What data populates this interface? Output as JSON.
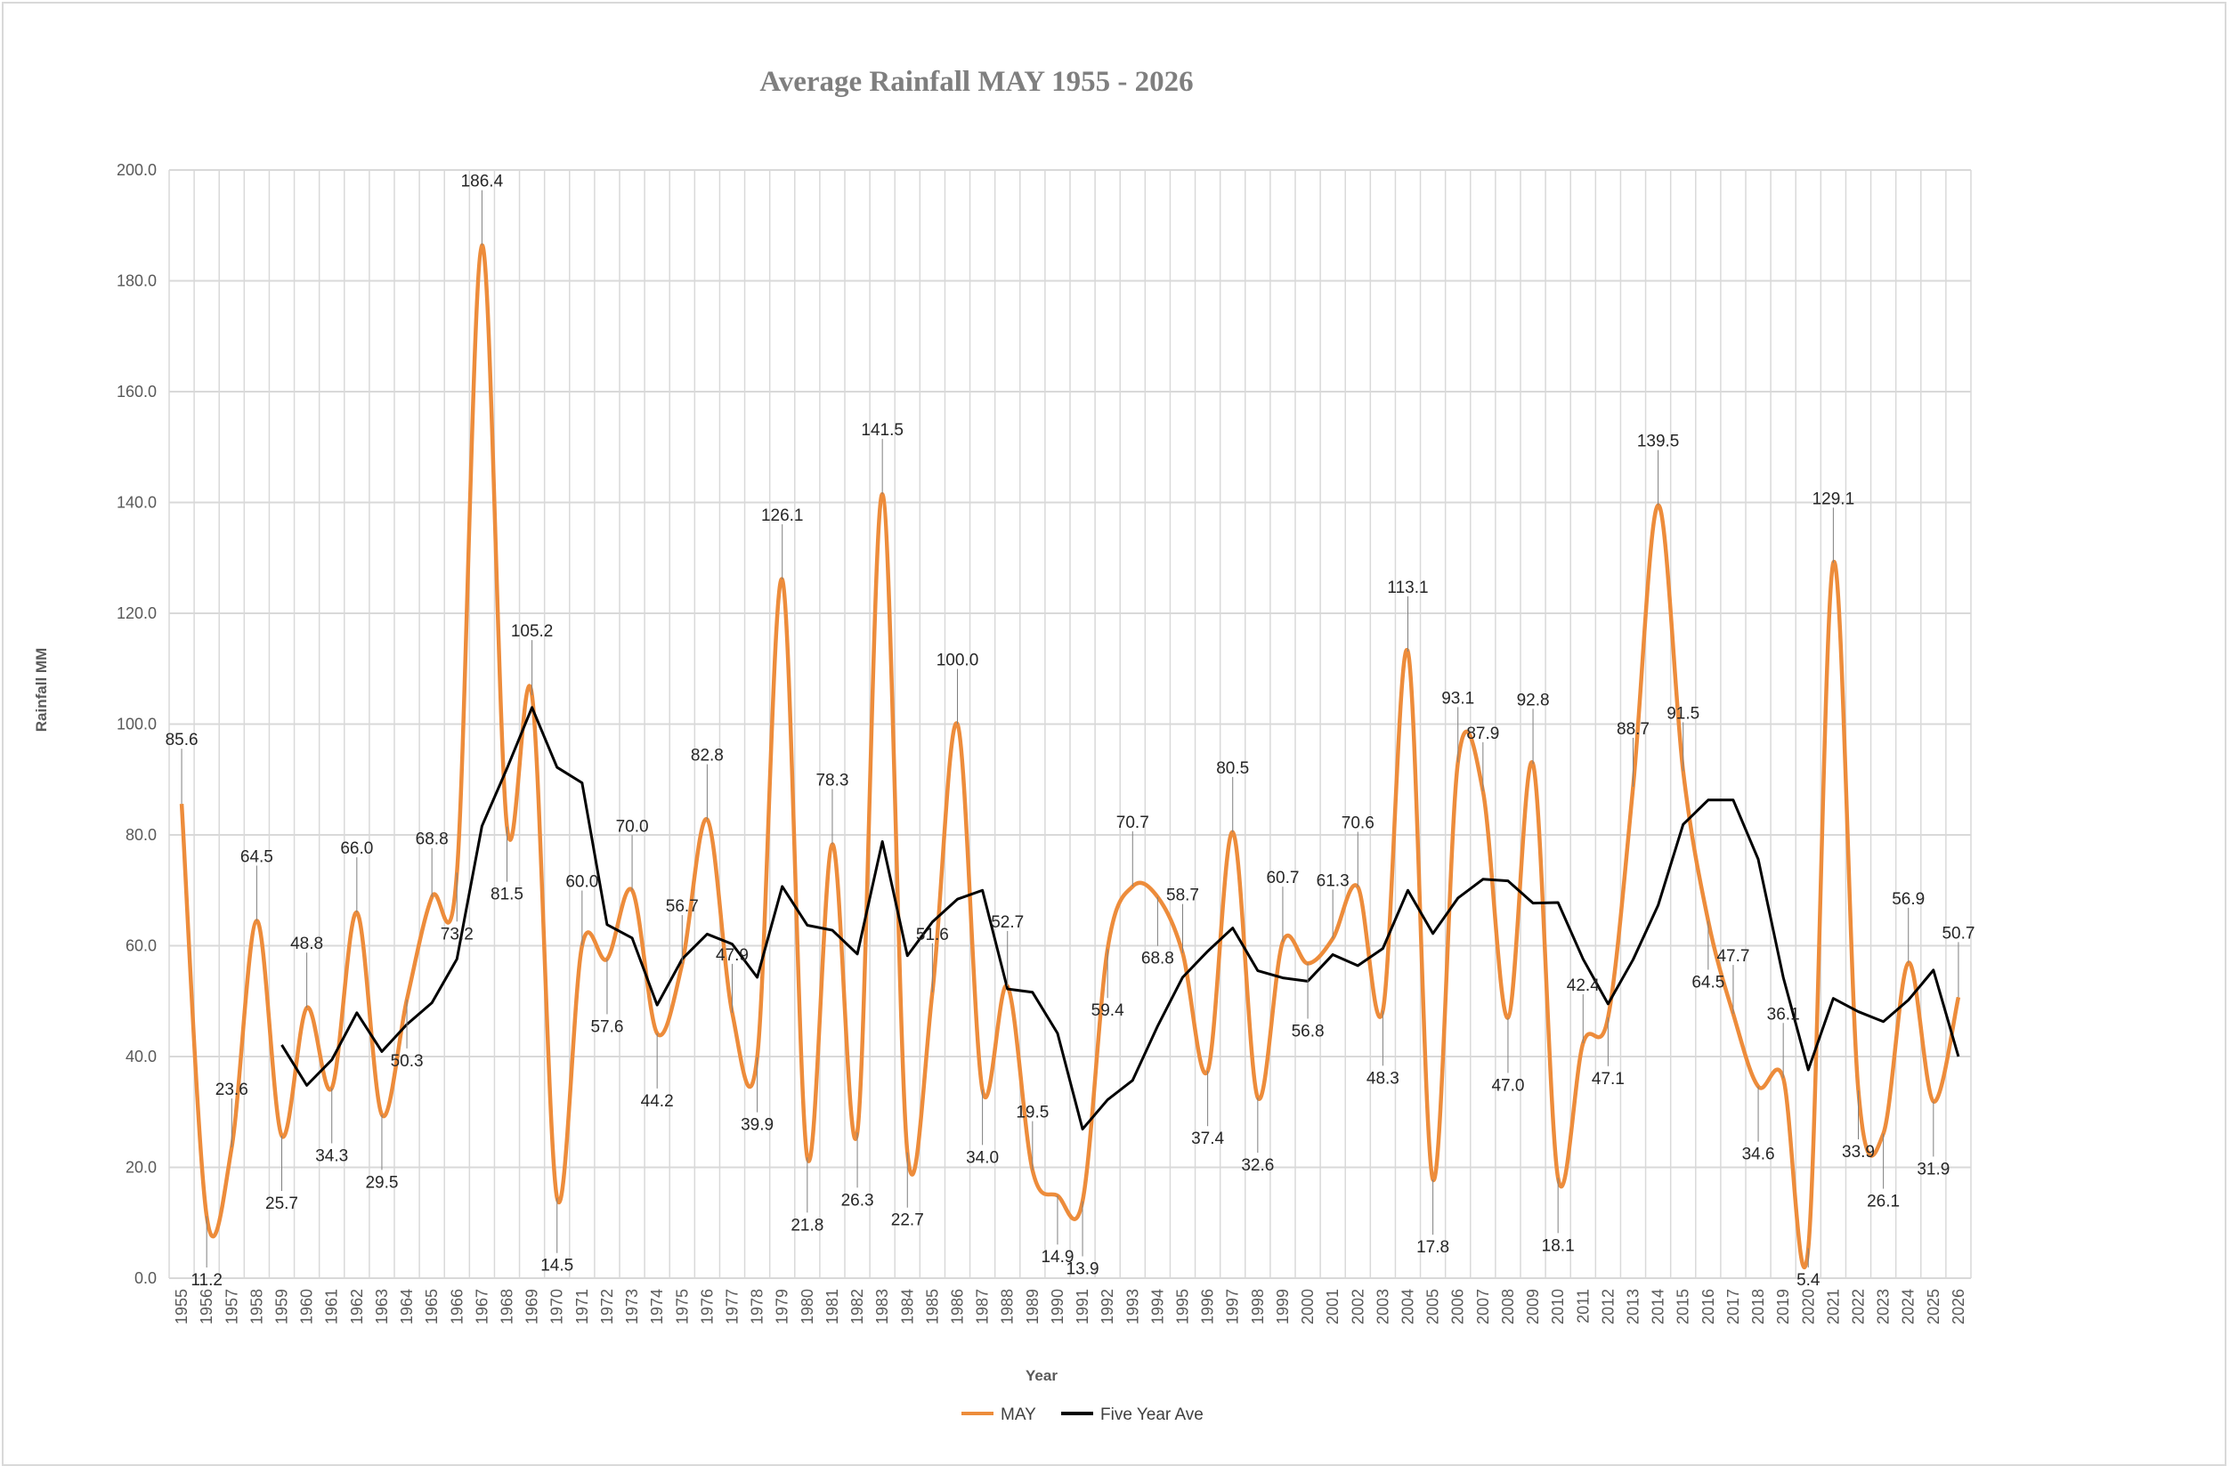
{
  "chart_data": {
    "type": "line",
    "title": "Average Rainfall MAY 1955 - 2026",
    "xlabel": "Year",
    "ylabel": "Rainfall MM",
    "ylim": [
      0,
      200
    ],
    "yticks": [
      "0.0",
      "20.0",
      "40.0",
      "60.0",
      "80.0",
      "100.0",
      "120.0",
      "140.0",
      "160.0",
      "180.0",
      "200.0"
    ],
    "grid": true,
    "legend_position": "bottom",
    "categories": [
      "1955",
      "1956",
      "1957",
      "1958",
      "1959",
      "1960",
      "1961",
      "1962",
      "1963",
      "1964",
      "1965",
      "1966",
      "1967",
      "1968",
      "1969",
      "1970",
      "1971",
      "1972",
      "1973",
      "1974",
      "1975",
      "1976",
      "1977",
      "1978",
      "1979",
      "1980",
      "1981",
      "1982",
      "1983",
      "1984",
      "1985",
      "1986",
      "1987",
      "1988",
      "1989",
      "1990",
      "1991",
      "1992",
      "1993",
      "1994",
      "1995",
      "1996",
      "1997",
      "1998",
      "1999",
      "2000",
      "2001",
      "2002",
      "2003",
      "2004",
      "2005",
      "2006",
      "2007",
      "2008",
      "2009",
      "2010",
      "2011",
      "2012",
      "2013",
      "2014",
      "2015",
      "2016",
      "2017",
      "2018",
      "2019",
      "2020",
      "2021",
      "2022",
      "2023",
      "2024",
      "2025",
      "2026"
    ],
    "series": [
      {
        "name": "MAY",
        "color": "#ed8c3b",
        "smooth": true,
        "values": [
          85.6,
          11.2,
          23.6,
          64.5,
          25.7,
          48.8,
          34.3,
          66.0,
          29.5,
          50.3,
          68.8,
          73.2,
          186.4,
          81.5,
          105.2,
          14.5,
          60.0,
          57.6,
          70.0,
          44.2,
          56.7,
          82.8,
          47.9,
          39.9,
          126.1,
          21.8,
          78.3,
          26.3,
          141.5,
          22.7,
          51.6,
          100.0,
          34.0,
          52.7,
          19.5,
          14.9,
          13.9,
          59.4,
          70.7,
          68.8,
          58.7,
          37.4,
          80.5,
          32.6,
          60.7,
          56.8,
          61.3,
          70.6,
          48.3,
          113.1,
          17.8,
          93.1,
          87.9,
          47.0,
          92.8,
          18.1,
          42.4,
          47.1,
          88.7,
          139.5,
          91.5,
          64.5,
          47.7,
          34.6,
          36.1,
          5.4,
          129.1,
          33.9,
          26.1,
          56.9,
          31.9,
          50.7
        ],
        "labels": [
          "85.6",
          "11.2",
          "23.6",
          "64.5",
          "25.7",
          "48.8",
          "34.3",
          "66.0",
          "29.5",
          "50.3",
          "68.8",
          "73.2",
          "186.4",
          "81.5",
          "105.2",
          "14.5",
          "60.0",
          "57.6",
          "70.0",
          "44.2",
          "56.7",
          "82.8",
          "47.9",
          "39.9",
          "126.1",
          "21.8",
          "78.3",
          "26.3",
          "141.5",
          "22.7",
          "51.6",
          "100.0",
          "34.0",
          "52.7",
          "19.5",
          "14.9",
          "13.9",
          "59.4",
          "70.7",
          "68.8",
          "58.7",
          "37.4",
          "80.5",
          "32.6",
          "60.7",
          "56.8",
          "61.3",
          "70.6",
          "48.3",
          "113.1",
          "17.8",
          "93.1",
          "87.9",
          "47.0",
          "92.8",
          "18.1",
          "42.4",
          "47.1",
          "88.7",
          "139.5",
          "91.5",
          "64.5",
          "47.7",
          "34.6",
          "36.1",
          "5.4",
          "129.1",
          "33.9",
          "26.1",
          "56.9",
          "31.9",
          "50.7"
        ]
      },
      {
        "name": "Five Year Ave",
        "color": "#000000",
        "smooth": false,
        "values": [
          null,
          null,
          null,
          null,
          42.1,
          34.8,
          39.4,
          47.9,
          40.9,
          45.8,
          49.7,
          57.6,
          81.6,
          92.0,
          103.0,
          92.2,
          89.4,
          63.8,
          61.4,
          49.3,
          57.6,
          62.1,
          60.3,
          54.3,
          70.7,
          63.7,
          62.8,
          58.5,
          78.8,
          58.2,
          64.3,
          68.4,
          70.0,
          52.2,
          51.6,
          44.2,
          26.9,
          32.2,
          35.7,
          45.5,
          54.3,
          59.0,
          63.2,
          55.5,
          54.2,
          53.6,
          58.4,
          56.4,
          59.5,
          70.0,
          62.2,
          68.6,
          72.0,
          71.7,
          67.7,
          67.8,
          57.6,
          49.5,
          57.5,
          67.3,
          81.9,
          86.3,
          86.3,
          75.6,
          54.3,
          37.6,
          50.5,
          48.1,
          46.3,
          50.2,
          55.6,
          40.0
        ]
      }
    ]
  }
}
